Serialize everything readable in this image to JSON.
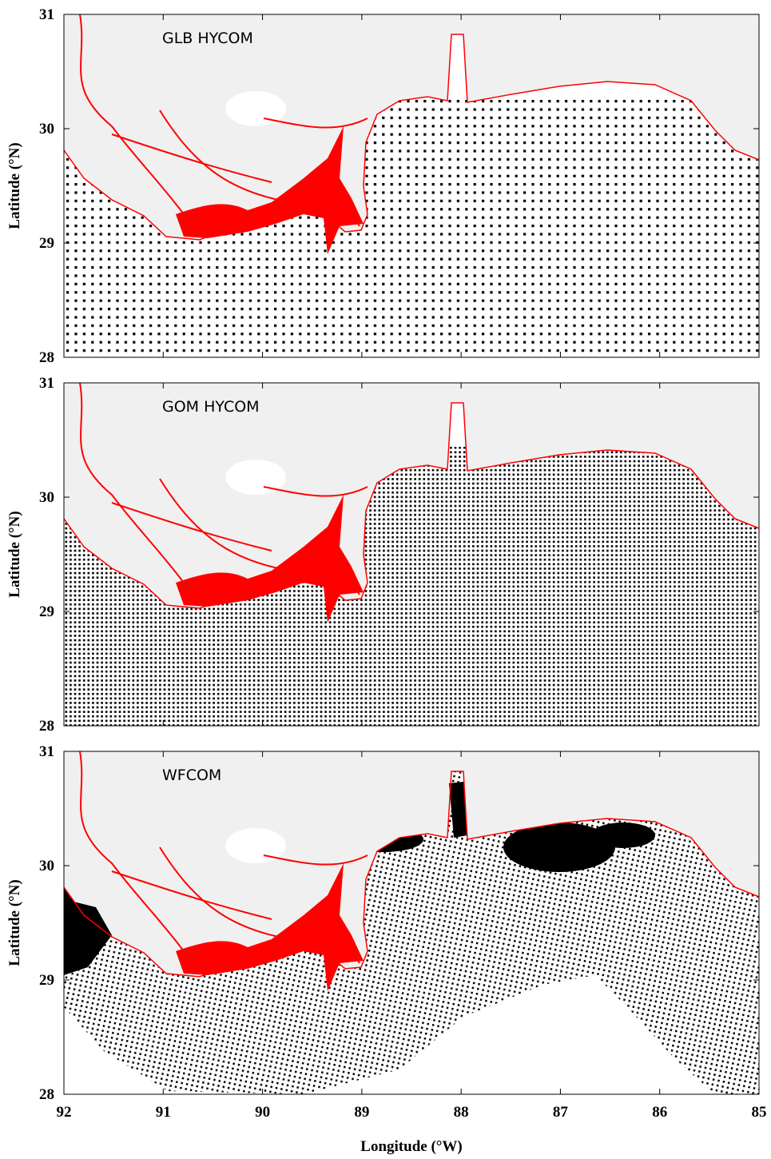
{
  "panels": [
    {
      "title": "GLB HYCOM",
      "y_axis_label": "Latitude (°N)"
    },
    {
      "title": "GOM HYCOM",
      "y_axis_label": "Latitude (°N)"
    },
    {
      "title": "WFCOM",
      "y_axis_label": "Latitude (°N)"
    }
  ],
  "x_axis_label": "Longitude (°W)",
  "xlim": [
    92,
    85
  ],
  "ylim": [
    28,
    31
  ],
  "xticks": [
    92,
    91,
    90,
    89,
    88,
    87,
    86,
    85
  ],
  "yticks": [
    28,
    29,
    30,
    31
  ]
}
